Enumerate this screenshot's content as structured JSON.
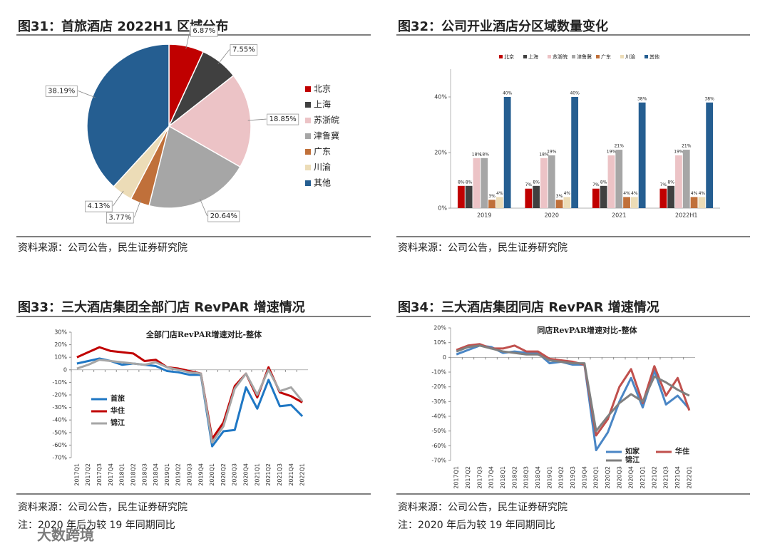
{
  "chart_data": [
    {
      "type": "pie",
      "caption": "图31：首旅酒店 2022H1 区域分布",
      "source": "资料来源：公司公告，民生证券研究院",
      "categories": [
        "北京",
        "上海",
        "苏浙皖",
        "津鲁冀",
        "广东",
        "川渝",
        "其他"
      ],
      "values": [
        6.87,
        7.55,
        18.85,
        20.64,
        3.77,
        4.13,
        38.19
      ],
      "value_labels": [
        "6.87%",
        "7.55%",
        "18.85%",
        "20.64%",
        "3.77%",
        "4.13%",
        "38.19%"
      ],
      "colors": [
        "#c00000",
        "#404040",
        "#ecc3c6",
        "#a6a6a6",
        "#c0703a",
        "#ecdcb7",
        "#255e91"
      ],
      "legend": "right"
    },
    {
      "type": "bar",
      "caption": "图32：公司开业酒店分区域数量变化",
      "source": "资料来源：公司公告，民生证券研究院",
      "categories": [
        "2019",
        "2020",
        "2021",
        "2022H1"
      ],
      "series": [
        {
          "name": "北京",
          "color": "#c00000",
          "values": [
            8,
            7,
            7,
            7
          ],
          "value_labels": [
            "8%",
            "7%",
            "7%",
            "7%"
          ]
        },
        {
          "name": "上海",
          "color": "#404040",
          "values": [
            8,
            8,
            8,
            8
          ],
          "value_labels": [
            "8%",
            "8%",
            "8%",
            "8%"
          ]
        },
        {
          "name": "苏浙皖",
          "color": "#ecc3c6",
          "values": [
            18,
            18,
            19,
            19
          ],
          "value_labels": [
            "18%",
            "18%",
            "19%",
            "19%"
          ]
        },
        {
          "name": "津鲁冀",
          "color": "#a6a6a6",
          "values": [
            18,
            19,
            21,
            21
          ],
          "value_labels": [
            "18%",
            "19%",
            "21%",
            "21%"
          ]
        },
        {
          "name": "广东",
          "color": "#c0703a",
          "values": [
            3,
            3,
            4,
            4
          ],
          "value_labels": [
            "3%",
            "3%",
            "4%",
            "4%"
          ]
        },
        {
          "name": "川渝",
          "color": "#ecdcb7",
          "values": [
            4,
            4,
            4,
            4
          ],
          "value_labels": [
            "4%",
            "4%",
            "4%",
            "4%"
          ]
        },
        {
          "name": "其他",
          "color": "#255e91",
          "values": [
            40,
            40,
            38,
            38
          ],
          "value_labels": [
            "40%",
            "40%",
            "38%",
            "38%"
          ]
        }
      ],
      "ylim": [
        0,
        50
      ],
      "yticks": [
        {
          "value": 0,
          "label": "0%"
        },
        {
          "value": 20,
          "label": "20%"
        },
        {
          "value": 40,
          "label": "40%"
        }
      ],
      "legend": "top"
    },
    {
      "type": "line",
      "caption": "图33：三大酒店集团全部门店 RevPAR 增速情况",
      "title": "全部门店RevPAR增速对比-整体",
      "source": "资料来源：公司公告，民生证券研究院",
      "note": "注：2020 年后为较 19 年同期同比",
      "categories": [
        "2017Q1",
        "2017Q2",
        "2017Q3",
        "2017Q4",
        "2018Q1",
        "2018Q2",
        "2018Q3",
        "2018Q4",
        "2019Q1",
        "2019Q2",
        "2019Q3",
        "2019Q4",
        "2020Q1",
        "2020Q2",
        "2020Q3",
        "2020Q4",
        "2021Q1",
        "2021Q2",
        "2021Q3",
        "2021Q4",
        "2022Q1"
      ],
      "series": [
        {
          "name": "首旅",
          "color": "#1f77c4",
          "values": [
            5,
            7,
            9,
            7,
            4,
            5,
            4,
            3,
            -1,
            -2,
            -4,
            -4,
            -61,
            -49,
            -48,
            -14,
            -31,
            -8,
            -29,
            -28,
            -37
          ]
        },
        {
          "name": "华住",
          "color": "#c00000",
          "values": [
            10,
            14,
            18,
            15,
            14,
            13,
            7,
            8,
            2,
            1,
            -1,
            -3,
            -55,
            -42,
            -13,
            -3,
            -22,
            2,
            -18,
            -21,
            -26
          ]
        },
        {
          "name": "锦江",
          "color": "#a6a6a6",
          "values": [
            1,
            4,
            8,
            7,
            6,
            5,
            4,
            6,
            2,
            0,
            -2,
            -3,
            -58,
            -45,
            -15,
            -3,
            -20,
            0,
            -17,
            -14,
            -25
          ]
        }
      ],
      "ylim": [
        -70,
        30
      ],
      "yticks": [
        {
          "value": 30,
          "label": "30%"
        },
        {
          "value": 20,
          "label": "20%"
        },
        {
          "value": 10,
          "label": "10%"
        },
        0,
        {
          "value": -10,
          "label": "-10%"
        },
        {
          "value": -20,
          "label": "-20%"
        },
        {
          "value": -30,
          "label": "-30%"
        },
        {
          "value": -40,
          "label": "-40%"
        },
        {
          "value": -50,
          "label": "-50%"
        },
        {
          "value": -60,
          "label": "-60%"
        },
        {
          "value": -70,
          "label": "-70%"
        }
      ],
      "legend": "lower-left"
    },
    {
      "type": "line",
      "caption": "图34：三大酒店集团同店 RevPAR 增速情况",
      "title": "同店RevPAR增速对比-整体",
      "source": "资料来源：公司公告，民生证券研究院",
      "note": "注：2020 年后为较 19 年同期同比",
      "categories": [
        "2017Q1",
        "2017Q2",
        "2017Q3",
        "2017Q4",
        "2018Q1",
        "2018Q2",
        "2018Q3",
        "2018Q4",
        "2019Q1",
        "2019Q2",
        "2019Q3",
        "2019Q4",
        "2020Q1",
        "2020Q2",
        "2020Q3",
        "2020Q4",
        "2021Q1",
        "2021Q2",
        "2021Q3",
        "2021Q4",
        "2022Q1"
      ],
      "series": [
        {
          "name": "如家",
          "color": "#4a86c5",
          "values": [
            2,
            5,
            8,
            7,
            3,
            4,
            3,
            3,
            -4,
            -3,
            -5,
            -5,
            -63,
            -51,
            -30,
            -14,
            -34,
            -9,
            -32,
            -26,
            -35
          ]
        },
        {
          "name": "华住",
          "color": "#c0504d",
          "values": [
            5,
            8,
            9,
            6,
            6,
            8,
            4,
            4,
            -1,
            -2,
            -3,
            -5,
            -53,
            -42,
            -20,
            -8,
            -31,
            -6,
            -26,
            -14,
            -36
          ]
        },
        {
          "name": "锦江",
          "color": "#7f7f7f",
          "values": [
            4,
            7,
            8,
            6,
            4,
            3,
            2,
            2,
            -2,
            -3,
            -4,
            -4,
            -50,
            -40,
            -31,
            -25,
            -30,
            -13,
            -17,
            -22,
            -26
          ]
        }
      ],
      "ylim": [
        -70,
        20
      ],
      "yticks": [
        {
          "value": 20,
          "label": "20%"
        },
        {
          "value": 10,
          "label": "10%"
        },
        0,
        {
          "value": -10,
          "label": "-10%"
        },
        {
          "value": -20,
          "label": "-20%"
        },
        {
          "value": -30,
          "label": "-30%"
        },
        {
          "value": -40,
          "label": "-40%"
        },
        {
          "value": -50,
          "label": "-50%"
        },
        {
          "value": -60,
          "label": "-60%"
        },
        {
          "value": -70,
          "label": "-70%"
        }
      ],
      "legend": "lower-right"
    }
  ],
  "watermark": "大数跨境"
}
